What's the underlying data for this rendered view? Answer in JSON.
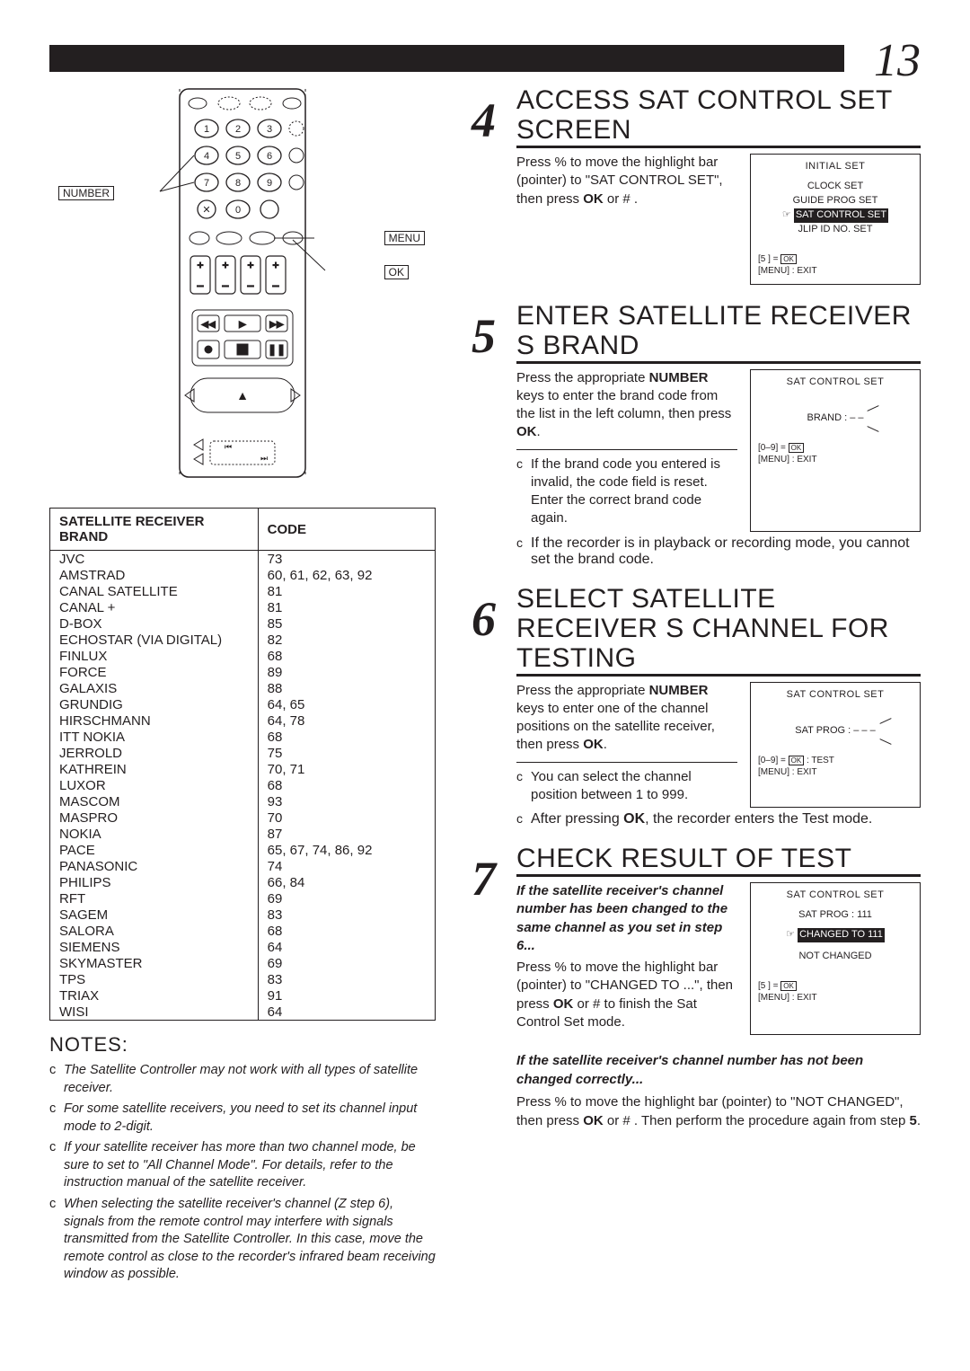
{
  "page_number": "13",
  "remote": {
    "labels": {
      "number": "NUMBER",
      "menu": "MENU",
      "ok": "OK"
    }
  },
  "brand_table": {
    "headers": [
      "SATELLITE RECEIVER BRAND",
      "CODE"
    ],
    "rows": [
      [
        "JVC",
        "73"
      ],
      [
        "AMSTRAD",
        "60, 61, 62, 63, 92"
      ],
      [
        "CANAL SATELLITE",
        "81"
      ],
      [
        "CANAL +",
        "81"
      ],
      [
        "D-BOX",
        "85"
      ],
      [
        "ECHOSTAR (VIA DIGITAL)",
        "82"
      ],
      [
        "FINLUX",
        "68"
      ],
      [
        "FORCE",
        "89"
      ],
      [
        "GALAXIS",
        "88"
      ],
      [
        "GRUNDIG",
        "64, 65"
      ],
      [
        "HIRSCHMANN",
        "64, 78"
      ],
      [
        "ITT NOKIA",
        "68"
      ],
      [
        "JERROLD",
        "75"
      ],
      [
        "KATHREIN",
        "70, 71"
      ],
      [
        "LUXOR",
        "68"
      ],
      [
        "MASCOM",
        "93"
      ],
      [
        "MASPRO",
        "70"
      ],
      [
        "NOKIA",
        "87"
      ],
      [
        "PACE",
        "65, 67, 74, 86, 92"
      ],
      [
        "PANASONIC",
        "74"
      ],
      [
        "PHILIPS",
        "66, 84"
      ],
      [
        "RFT",
        "69"
      ],
      [
        "SAGEM",
        "83"
      ],
      [
        "SALORA",
        "68"
      ],
      [
        "SIEMENS",
        "64"
      ],
      [
        "SKYMASTER",
        "69"
      ],
      [
        "TPS",
        "83"
      ],
      [
        "TRIAX",
        "91"
      ],
      [
        "WISI",
        "64"
      ]
    ]
  },
  "notes": {
    "heading": "NOTES:",
    "marker": "c",
    "items": [
      "The Satellite Controller may not work with all types of satellite receiver.",
      "For some satellite receivers, you need to set its channel input mode to 2-digit.",
      "If your satellite receiver has more than two channel mode, be sure to set to \"All Channel Mode\". For details, refer to the instruction manual of the satellite receiver.",
      "When selecting the satellite receiver's channel (Z  step 6), signals from the remote control may interfere with signals transmitted from the Satellite Controller. In this case, move the remote control as close to the recorder's infrared beam receiving window as possible."
    ]
  },
  "steps": {
    "s4": {
      "num": "4",
      "title": "ACCESS SAT CONTROL SET SCREEN",
      "text": "Press %   to move the highlight bar (pointer) to \"SAT CONTROL SET\", then press OK or # .",
      "osd": {
        "title": "INITIAL SET",
        "lines": [
          "CLOCK SET",
          "GUIDE PROG SET",
          "SAT CONTROL SET",
          "JLIP ID NO. SET"
        ],
        "highlight_index": 2,
        "foot": [
          "[5    ] =  OK",
          "[MENU] : EXIT"
        ]
      }
    },
    "s5": {
      "num": "5",
      "title": "ENTER SATELLITE RECEIVER S BRAND",
      "text_html": "Press the appropriate <strong>NUMBER</strong> keys to enter the brand code from the list in the left column, then press <strong>OK</strong>.",
      "bullets": [
        "If the brand code you entered is invalid, the code field is reset. Enter the correct brand code again.",
        "If the recorder is in playback or recording mode, you cannot set the brand code."
      ],
      "osd": {
        "title": "SAT CONTROL SET",
        "brand_line": "BRAND : – –",
        "foot": [
          "[0–9] =  OK",
          "[MENU] : EXIT"
        ]
      }
    },
    "s6": {
      "num": "6",
      "title": "SELECT SATELLITE RECEIVER S CHANNEL FOR TESTING",
      "text_html": "Press the appropriate <strong>NUMBER</strong> keys to enter one of the channel positions on the satellite receiver, then press <strong>OK</strong>.",
      "bullets": [
        "You can select the channel position between 1 to 999.",
        "After pressing OK, the recorder enters the Test mode."
      ],
      "osd": {
        "title": "SAT CONTROL SET",
        "brand_line": "SAT PROG : – – –",
        "foot": [
          "[0–9] =  OK : TEST",
          "[MENU] : EXIT"
        ]
      }
    },
    "s7": {
      "num": "7",
      "title": "CHECK RESULT OF TEST",
      "intro": "If the satellite receiver's channel number has been changed to the same channel as you set in step 6...",
      "text": "Press %   to move the highlight bar (pointer) to \"CHANGED TO ...\", then press OK or #  to finish the Sat Control Set mode.",
      "osd": {
        "title": "SAT CONTROL SET",
        "sub": "SAT PROG : 111",
        "lines": [
          "CHANGED TO 111",
          "NOT CHANGED"
        ],
        "highlight_index": 0,
        "foot": [
          "[5    ] =  OK",
          "[MENU] : EXIT"
        ]
      },
      "after_heading": "If the satellite receiver's channel number has not been changed correctly...",
      "after_text": "Press %   to move the highlight bar (pointer) to \"NOT CHANGED\", then press OK or # . Then perform the procedure again from step 5."
    }
  }
}
